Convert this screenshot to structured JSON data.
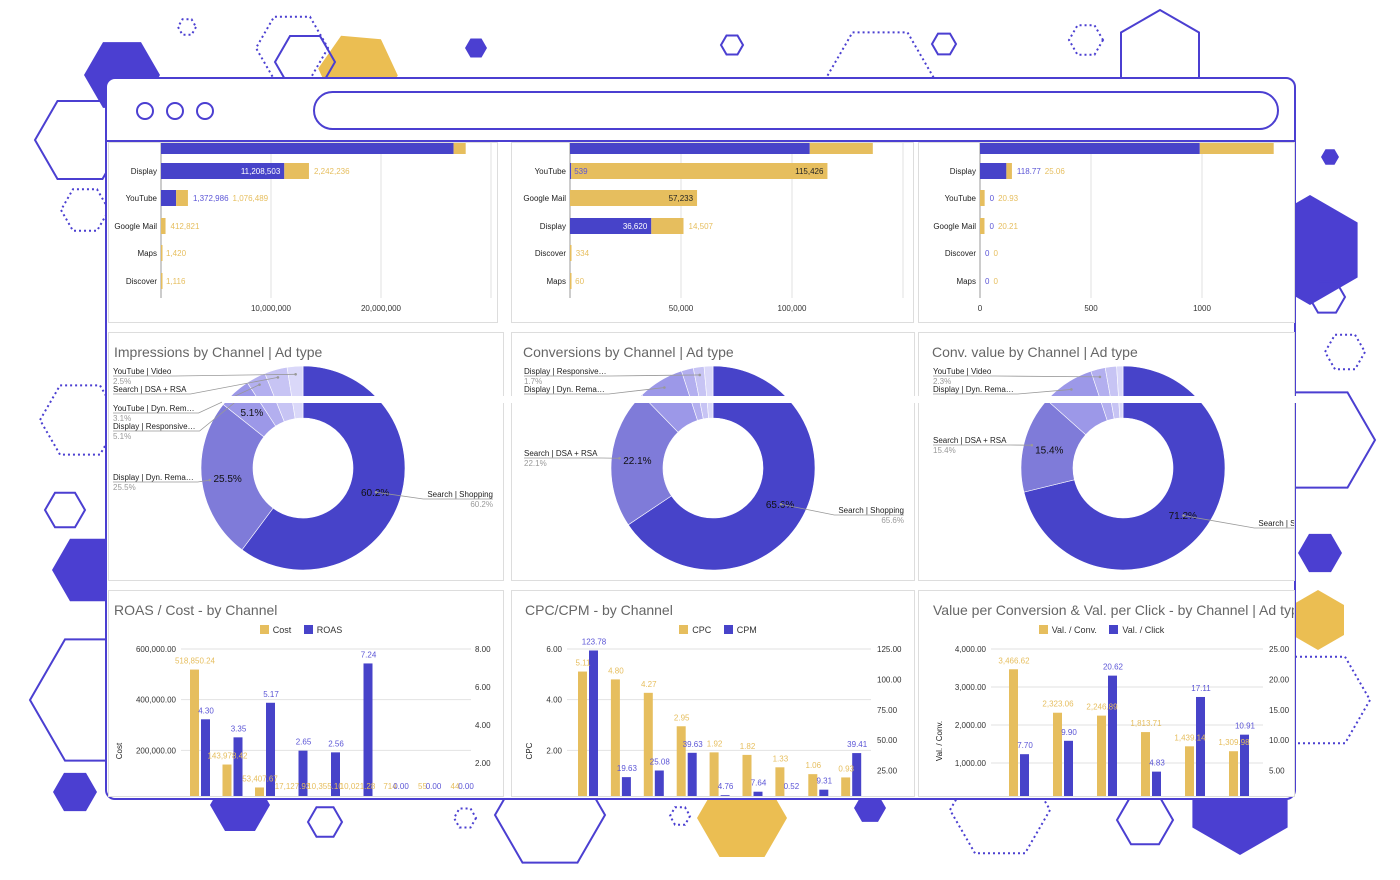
{
  "colors": {
    "brand": "#4B3FD1",
    "series_blue": "#4743C9",
    "series_gold": "#E6BE5E",
    "slices": [
      "#4743C9",
      "#7F7BD9",
      "#9C98E8",
      "#B3AFEF",
      "#C7C4F4",
      "#DAD8F9"
    ]
  },
  "browser": {
    "window_controls": [
      "circle",
      "circle",
      "circle"
    ],
    "address_bar_value": ""
  },
  "chart_data": [
    {
      "type": "bar",
      "orientation": "horizontal",
      "stacked": true,
      "categories": [
        "",
        "Display",
        "YouTube",
        "Google Mail",
        "Maps",
        "Discover"
      ],
      "series": [
        {
          "color": "#4743C9",
          "values": [
            26600000,
            11208503,
            1372986,
            0,
            0,
            0
          ],
          "labels": [
            null,
            "11,208,503",
            "1,372,986",
            null,
            null,
            null
          ]
        },
        {
          "color": "#E6BE5E",
          "values": [
            1100000,
            2242236,
            1076489,
            412821,
            1420,
            1116
          ],
          "labels": [
            null,
            "2,242,236",
            "1,076,489",
            "412,821",
            "1,420",
            "1,116"
          ]
        }
      ],
      "xticks": [
        {
          "v": 10000000,
          "label": "10,000,000"
        },
        {
          "v": 20000000,
          "label": "20,000,000"
        },
        {
          "v": 30000000,
          "label": ""
        }
      ],
      "xlim": [
        0,
        30000000
      ],
      "grid": true
    },
    {
      "type": "bar",
      "orientation": "horizontal",
      "stacked": true,
      "categories": [
        "",
        "YouTube",
        "Google Mail",
        "Display",
        "Discover",
        "Maps"
      ],
      "series": [
        {
          "color": "#4743C9",
          "values": [
            108000,
            539,
            0,
            36620,
            0,
            0
          ],
          "labels": [
            null,
            "539",
            null,
            "36,620",
            null,
            null
          ]
        },
        {
          "color": "#E6BE5E",
          "values": [
            28400,
            115426,
            57233,
            14507,
            334,
            60
          ],
          "labels": [
            null,
            "115,426",
            "57,233",
            "14,507",
            "334",
            "60"
          ]
        }
      ],
      "xticks": [
        {
          "v": 50000,
          "label": "50,000"
        },
        {
          "v": 100000,
          "label": "100,000"
        },
        {
          "v": 150000,
          "label": ""
        }
      ],
      "xlim": [
        0,
        150000
      ],
      "grid": true
    },
    {
      "type": "bar",
      "orientation": "horizontal",
      "stacked": true,
      "categories": [
        "",
        "Display",
        "YouTube",
        "Google Mail",
        "Discover",
        "Maps"
      ],
      "series": [
        {
          "color": "#4743C9",
          "values": [
            990,
            118.77,
            0,
            0,
            0,
            0
          ],
          "labels": [
            null,
            "118.77",
            "0",
            "0",
            "0",
            "0"
          ]
        },
        {
          "color": "#E6BE5E",
          "values": [
            333,
            25.06,
            20.93,
            20.21,
            0,
            0
          ],
          "labels": [
            null,
            "25.06",
            "20.93",
            "20.21",
            "0",
            "0"
          ]
        }
      ],
      "xticks": [
        {
          "v": 0,
          "label": "0"
        },
        {
          "v": 500,
          "label": "500"
        },
        {
          "v": 1000,
          "label": "1000"
        }
      ],
      "xlim": [
        0,
        1350
      ],
      "grid": true
    },
    {
      "type": "pie",
      "donut": true,
      "title": "Impressions by Channel | Ad type",
      "slices": [
        {
          "label": "Search | Shopping",
          "pct": 60.2,
          "pct_label": "60.2%"
        },
        {
          "label": "Display | Dyn. Rema…",
          "pct": 25.5,
          "pct_label": "25.5%"
        },
        {
          "label": "Display | Responsive…",
          "pct": 5.1,
          "pct_label": "5.1%"
        },
        {
          "label": "YouTube | Dyn. Rem…",
          "pct": 3.1,
          "pct_label": "3.1%"
        },
        {
          "label": "Search | DSA + RSA",
          "pct": 3.6,
          "pct_label": ""
        },
        {
          "label": "YouTube | Video",
          "pct": 2.5,
          "pct_label": "2.5%"
        }
      ]
    },
    {
      "type": "pie",
      "donut": true,
      "title": "Conversions by Channel | Ad type",
      "slices": [
        {
          "label": "Search | Shopping",
          "pct": 65.6,
          "pct_label": "65.6%"
        },
        {
          "label": "Search | DSA + RSA",
          "pct": 22.1,
          "pct_label": "22.1%"
        },
        {
          "label": "Display | Dyn. Rema…",
          "pct": 7.3,
          "pct_label": ""
        },
        {
          "label": "",
          "pct": 1.9,
          "pct_label": ""
        },
        {
          "label": "Display | Responsive…",
          "pct": 1.7,
          "pct_label": "1.7%"
        },
        {
          "label": "",
          "pct": 1.4,
          "pct_label": ""
        }
      ]
    },
    {
      "type": "pie",
      "donut": true,
      "title": "Conv. value by Channel | Ad type",
      "slices": [
        {
          "label": "Search | Shopping",
          "pct": 71.2,
          "pct_label": "71.2%"
        },
        {
          "label": "Search | DSA + RSA",
          "pct": 15.4,
          "pct_label": "15.4%"
        },
        {
          "label": "Display | Dyn. Rema…",
          "pct": 8.3,
          "pct_label": ""
        },
        {
          "label": "YouTube | Video",
          "pct": 2.3,
          "pct_label": "2.3%"
        },
        {
          "label": "",
          "pct": 1.8,
          "pct_label": ""
        },
        {
          "label": "",
          "pct": 1.0,
          "pct_label": ""
        }
      ]
    },
    {
      "type": "bar",
      "title": "ROAS / Cost - by Channel",
      "ylabel": "Cost",
      "legend": "top",
      "series": [
        {
          "name": "Cost",
          "axis": "left",
          "color": "#E6BE5E",
          "values": [
            518850.24,
            143978.42,
            53407.67,
            17127.93,
            10355.1,
            10021.28,
            714,
            55,
            44
          ],
          "labels": [
            "518,850.24",
            "143,978.42",
            "53,407.67",
            "17,127.93",
            "10,355.10",
            "10,021.28",
            "714",
            "55",
            "44"
          ]
        },
        {
          "name": "ROAS",
          "axis": "right",
          "color": "#4743C9",
          "values": [
            4.3,
            3.35,
            5.17,
            2.65,
            2.56,
            7.24,
            0,
            0,
            0
          ],
          "labels": [
            "4.30",
            "3.35",
            "5.17",
            "2.65",
            "2.56",
            "7.24",
            "0.00",
            "0.00",
            "0.00"
          ]
        }
      ],
      "left_ticks": [
        {
          "v": 200000,
          "label": "200,000.00"
        },
        {
          "v": 400000,
          "label": "400,000.00"
        },
        {
          "v": 600000,
          "label": "600,000.00"
        }
      ],
      "right_ticks": [
        {
          "v": 2,
          "label": "2.00"
        },
        {
          "v": 4,
          "label": "4.00"
        },
        {
          "v": 6,
          "label": "6.00"
        },
        {
          "v": 8,
          "label": "8.00"
        }
      ],
      "ylim_left": [
        0,
        600000
      ],
      "ylim_right": [
        0,
        8
      ]
    },
    {
      "type": "bar",
      "title": "CPC/CPM - by Channel",
      "ylabel": "CPC",
      "legend": "top",
      "series": [
        {
          "name": "CPC",
          "axis": "left",
          "color": "#E6BE5E",
          "values": [
            5.11,
            4.8,
            4.27,
            2.95,
            1.92,
            1.82,
            1.33,
            1.06,
            0.93
          ],
          "labels": [
            "5.11",
            "4.80",
            "4.27",
            "2.95",
            "1.92",
            "1.82",
            "1.33",
            "1.06",
            "0.93"
          ]
        },
        {
          "name": "CPM",
          "axis": "right",
          "color": "#4743C9",
          "values": [
            123.78,
            19.63,
            25.08,
            39.63,
            4.76,
            7.64,
            0.52,
            9.31,
            39.41
          ],
          "labels": [
            "123.78",
            "19.63",
            "25.08",
            "39.63",
            "4.76",
            "7.64",
            "0.52",
            "9.31",
            "39.41"
          ]
        }
      ],
      "left_ticks": [
        {
          "v": 2,
          "label": "2.00"
        },
        {
          "v": 4,
          "label": "4.00"
        },
        {
          "v": 6,
          "label": "6.00"
        }
      ],
      "right_ticks": [
        {
          "v": 25,
          "label": "25.00"
        },
        {
          "v": 50,
          "label": "50.00"
        },
        {
          "v": 75,
          "label": "75.00"
        },
        {
          "v": 100,
          "label": "100.00"
        },
        {
          "v": 125,
          "label": "125.00"
        }
      ],
      "ylim_left": [
        0,
        6
      ],
      "ylim_right": [
        0,
        125
      ]
    },
    {
      "type": "bar",
      "title": "Value per Conversion & Val. per Click - by Channel | Ad type",
      "ylabel": "Val. / Conv.",
      "legend": "top",
      "series": [
        {
          "name": "Val. / Conv.",
          "axis": "left",
          "color": "#E6BE5E",
          "values": [
            3466.62,
            2323.06,
            2246.89,
            1813.71,
            1439.14,
            1309.98
          ],
          "labels": [
            "3,466.62",
            "2,323.06",
            "2,246.89",
            "1,813.71",
            "1,439.14",
            "1,309.98"
          ]
        },
        {
          "name": "Val. / Click",
          "axis": "right",
          "color": "#4743C9",
          "values": [
            7.7,
            9.9,
            20.62,
            4.83,
            17.11,
            10.91
          ],
          "labels": [
            "7.70",
            "9.90",
            "20.62",
            "4.83",
            "17.11",
            "10.91"
          ]
        }
      ],
      "left_ticks": [
        {
          "v": 1000,
          "label": "1,000.00"
        },
        {
          "v": 2000,
          "label": "2,000.00"
        },
        {
          "v": 3000,
          "label": "3,000.00"
        },
        {
          "v": 4000,
          "label": "4,000.00"
        }
      ],
      "right_ticks": [
        {
          "v": 5,
          "label": "5.00"
        },
        {
          "v": 10,
          "label": "10.00"
        },
        {
          "v": 15,
          "label": "15.00"
        },
        {
          "v": 20,
          "label": "20.00"
        },
        {
          "v": 25,
          "label": "25.00"
        }
      ],
      "ylim_left": [
        0,
        4000
      ],
      "ylim_right": [
        0,
        25
      ]
    }
  ]
}
